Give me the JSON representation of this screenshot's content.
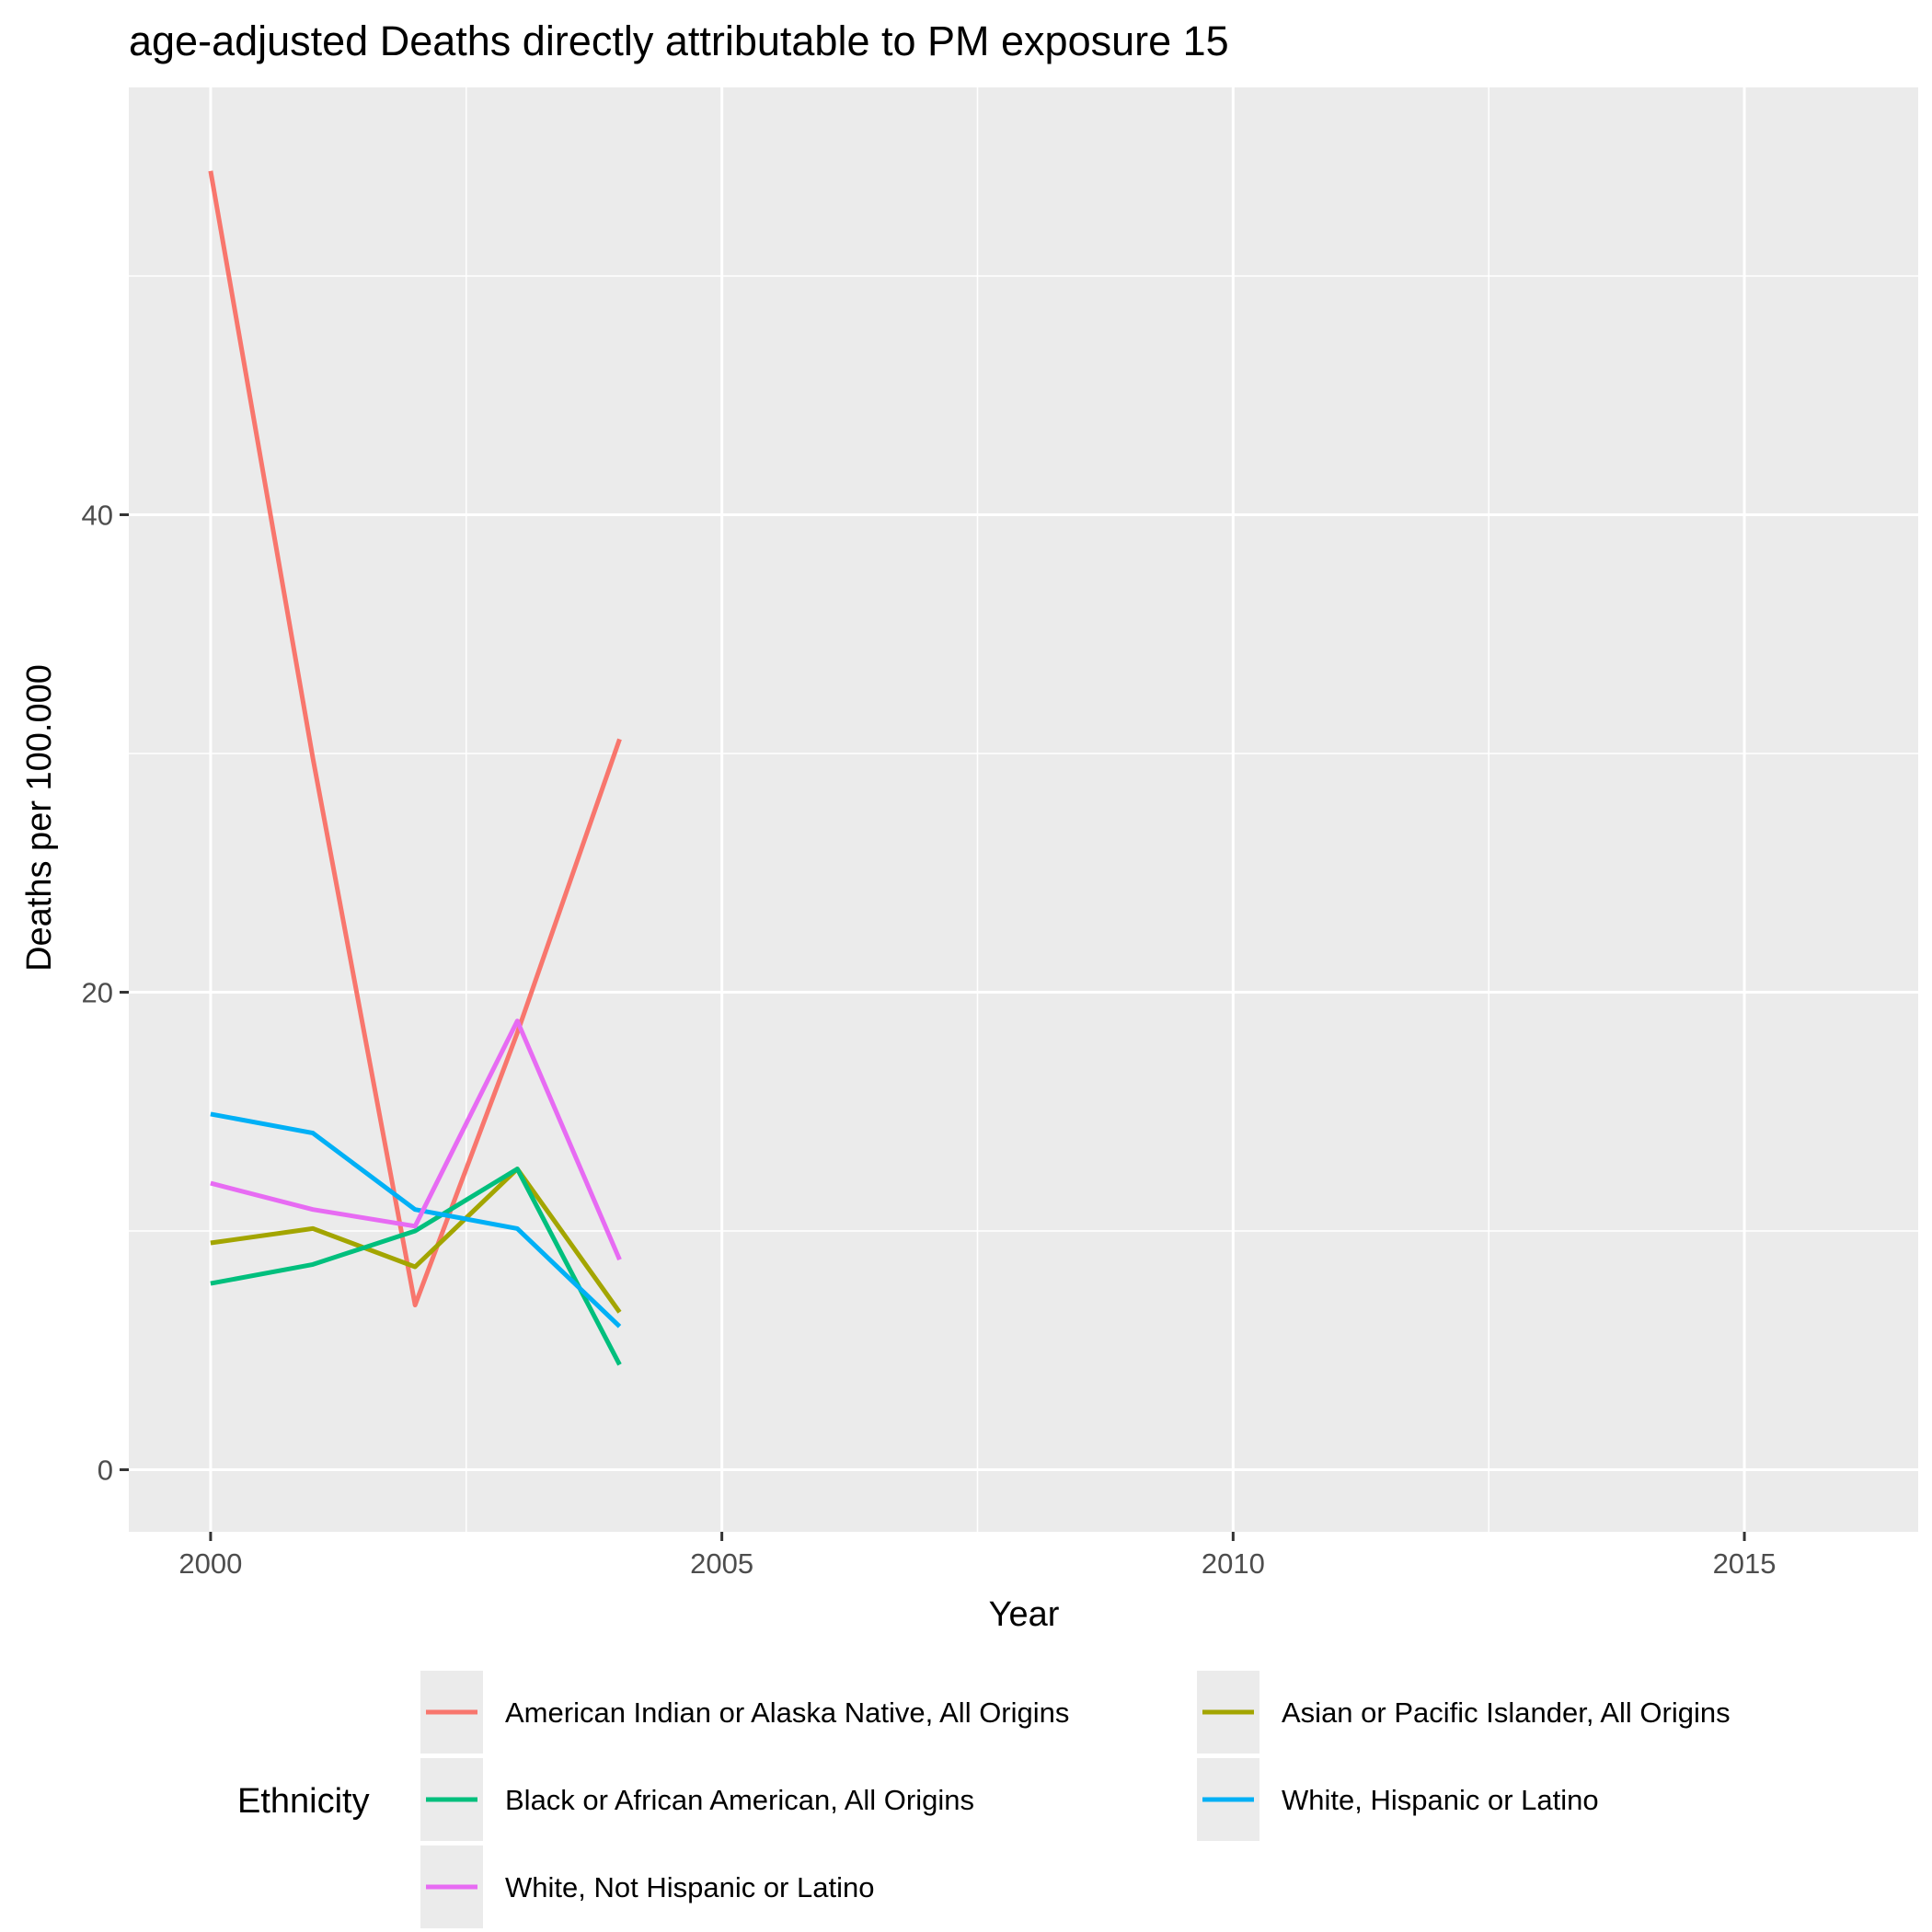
{
  "chart_data": {
    "type": "line",
    "title": "age-adjusted Deaths directly attributable to PM exposure 15",
    "xlabel": "Year",
    "ylabel": "Deaths per 100.000",
    "x_ticks": [
      2000,
      2005,
      2010,
      2015
    ],
    "y_ticks": [
      0,
      20,
      40
    ],
    "xlim": [
      1999.2,
      2016.7
    ],
    "ylim": [
      -2.6,
      57.9
    ],
    "grid": true,
    "legend_title": "Ethnicity",
    "legend_position": "bottom",
    "x": [
      2000,
      2001,
      2002,
      2003,
      2004
    ],
    "series": [
      {
        "name": "American Indian or Alaska Native, All Origins",
        "color": "#F8766D",
        "values": [
          54.4,
          29.8,
          6.9,
          18.3,
          30.6
        ]
      },
      {
        "name": "Asian or Pacific Islander, All Origins",
        "color": "#A3A500",
        "values": [
          9.5,
          10.1,
          8.5,
          12.6,
          6.6
        ]
      },
      {
        "name": "Black or African American, All Origins",
        "color": "#00BF7D",
        "values": [
          7.8,
          8.6,
          10.0,
          12.6,
          4.4
        ]
      },
      {
        "name": "White, Hispanic or Latino",
        "color": "#00B0F6",
        "values": [
          14.9,
          14.1,
          10.9,
          10.1,
          6.0
        ]
      },
      {
        "name": "White, Not Hispanic or Latino",
        "color": "#E76BF3",
        "values": [
          12.0,
          10.9,
          10.2,
          18.8,
          8.8
        ]
      }
    ]
  }
}
